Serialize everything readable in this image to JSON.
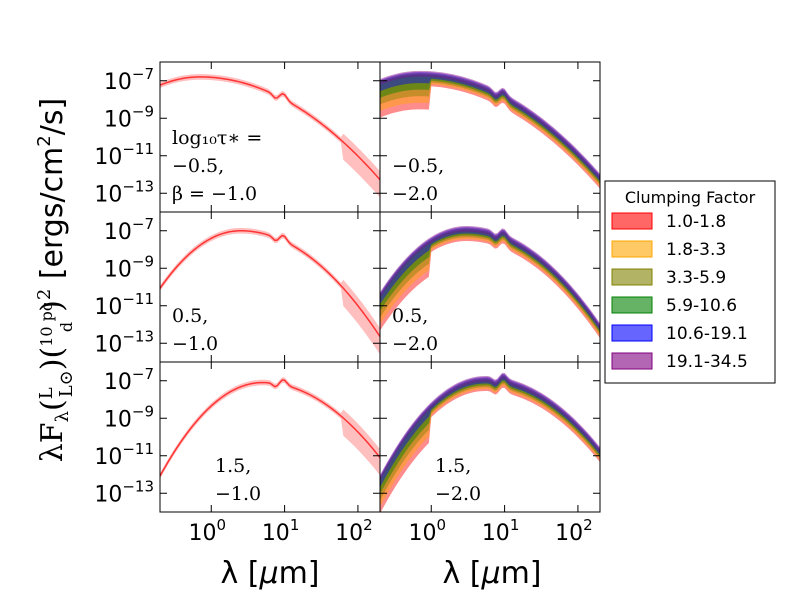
{
  "chart_data": {
    "type": "line",
    "figure": "3x2 grid of log-log SED panels",
    "ylabel": "λF_λ(L/L⊙)(10pc/d)² [ergs/cm²/s]",
    "ylabel_parts": {
      "main": "λF",
      "sub": "λ",
      "frac1_num": "L",
      "frac1_den": "L⊙",
      "frac2_num": "10 pc",
      "frac2_den": "d",
      "power": "2",
      "units": " [ergs/cm",
      "units_sup": "2",
      "units_end": "/s]"
    },
    "xlabel_prefix": "λ [",
    "xlabel_mu": "μ",
    "xlabel_suffix": "m]",
    "xscale": "log",
    "yscale": "log",
    "xlim": [
      0.2,
      200
    ],
    "ylim": [
      1e-14,
      1e-06
    ],
    "xticks": [
      {
        "base": "10",
        "exp": "0",
        "value": 1
      },
      {
        "base": "10",
        "exp": "1",
        "value": 10
      },
      {
        "base": "10",
        "exp": "2",
        "value": 100
      }
    ],
    "yticks": [
      {
        "base": "10",
        "exp": "−7",
        "value": 1e-07
      },
      {
        "base": "10",
        "exp": "−9",
        "value": 1e-09
      },
      {
        "base": "10",
        "exp": "−11",
        "value": 1e-11
      },
      {
        "base": "10",
        "exp": "−13",
        "value": 1e-13
      }
    ],
    "legend": {
      "title": "Clumping Factor",
      "placement": "right",
      "entries": [
        {
          "label": "1.0-1.8",
          "color": "#ff0000"
        },
        {
          "label": "1.8-3.3",
          "color": "#ffa500"
        },
        {
          "label": "3.3-5.9",
          "color": "#808000"
        },
        {
          "label": "5.9-10.6",
          "color": "#008000"
        },
        {
          "label": "10.6-19.1",
          "color": "#0000ff"
        },
        {
          "label": "19.1-34.5",
          "color": "#800080"
        }
      ]
    },
    "panels": [
      {
        "row": 0,
        "col": 0,
        "annotation": [
          "log₁₀τ∗ =",
          "−0.5,",
          "β = −1.0"
        ],
        "single": true,
        "peak_um": 0.7,
        "peak": 1.6e-07
      },
      {
        "row": 0,
        "col": 1,
        "annotation": [
          "−0.5,",
          "−2.0"
        ],
        "single": false,
        "peak_um": 0.7,
        "peak": 1.5e-07
      },
      {
        "row": 1,
        "col": 0,
        "annotation": [
          "0.5,",
          "−1.0"
        ],
        "single": true,
        "peak_um": 2.5,
        "peak": 1e-07
      },
      {
        "row": 1,
        "col": 1,
        "annotation": [
          "0.5,",
          "−2.0"
        ],
        "single": false,
        "peak_um": 3.0,
        "peak": 8e-08
      },
      {
        "row": 2,
        "col": 0,
        "annotation": [
          "1.5,",
          "−1.0"
        ],
        "single": true,
        "peak_um": 5.0,
        "peak": 8e-08
      },
      {
        "row": 2,
        "col": 1,
        "annotation": [
          "1.5,",
          "−2.0"
        ],
        "single": false,
        "peak_um": 5.5,
        "peak": 8e-08
      }
    ]
  }
}
